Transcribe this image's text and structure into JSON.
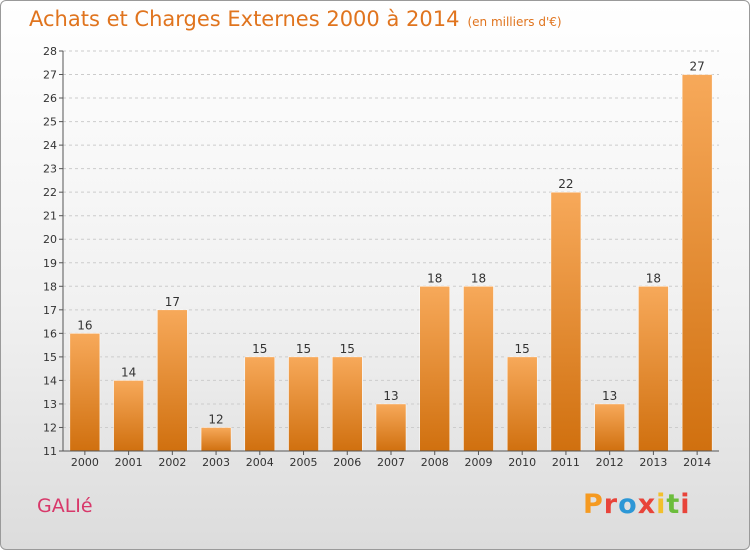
{
  "header": {
    "title": "Achats et Charges Externes 2000 à 2014",
    "subtitle": "(en milliers d'€)"
  },
  "commune": "GALIé",
  "logo": {
    "text": "Proxiti",
    "colors": [
      "#f59a21",
      "#e8443a",
      "#2c97d6",
      "#e8443a",
      "#f2c02c",
      "#6cbd3c",
      "#e8443a"
    ]
  },
  "colors": {
    "bar_light": "#f7a95a",
    "bar_dark": "#d0700f",
    "title": "#e0741e"
  },
  "chart_data": {
    "type": "bar",
    "title": "Achats et Charges Externes 2000 à 2014",
    "subtitle": "(en milliers d'€)",
    "categories": [
      "2000",
      "2001",
      "2002",
      "2003",
      "2004",
      "2005",
      "2006",
      "2007",
      "2008",
      "2009",
      "2010",
      "2011",
      "2012",
      "2013",
      "2014"
    ],
    "values": [
      16,
      14,
      17,
      12,
      15,
      15,
      15,
      13,
      18,
      18,
      15,
      22,
      13,
      18,
      27
    ],
    "ylim": [
      11,
      28
    ],
    "yticks": [
      11,
      12,
      13,
      14,
      15,
      16,
      17,
      18,
      19,
      20,
      21,
      22,
      23,
      24,
      25,
      26,
      27,
      28
    ],
    "grid": true,
    "data_labels": true
  }
}
